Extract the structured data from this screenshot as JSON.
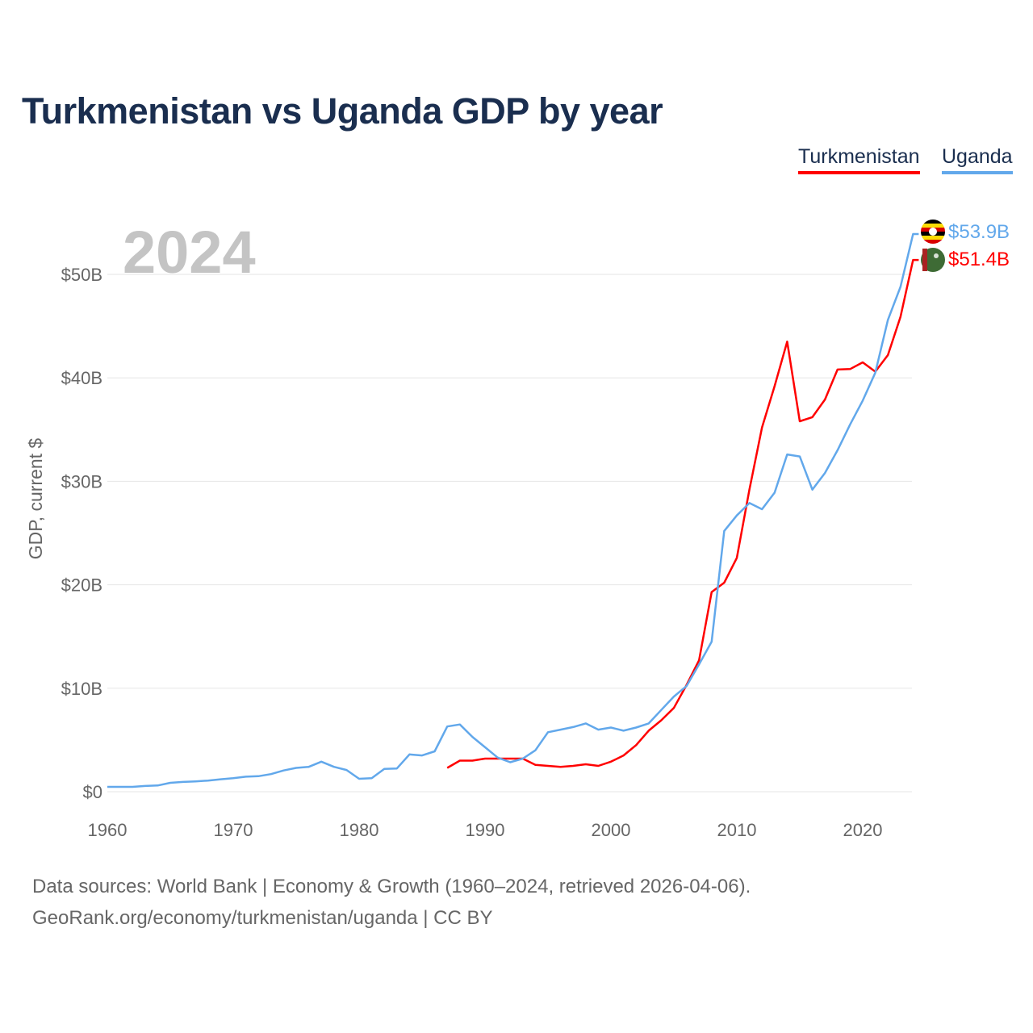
{
  "title": "Turkmenistan vs Uganda GDP by year",
  "legend": [
    "Turkmenistan",
    "Uganda"
  ],
  "year_label": "2024",
  "end_labels": {
    "uganda": "$53.9B",
    "turkmenistan": "$51.4B"
  },
  "flags": {
    "uganda": "uganda-flag-icon",
    "turkmenistan": "turkmenistan-flag-icon"
  },
  "sources": {
    "line1": "Data sources: World Bank | Economy & Growth (1960–2024, retrieved 2026-04-06).",
    "line2": "GeoRank.org/economy/turkmenistan/uganda | CC BY"
  },
  "chart_data": {
    "type": "line",
    "title": "Turkmenistan vs Uganda GDP by year",
    "xlabel": "",
    "ylabel": "GDP, current $",
    "xlim": [
      1960,
      2024
    ],
    "ylim": [
      0,
      55
    ],
    "x_ticks": [
      1960,
      1970,
      1980,
      1990,
      2000,
      2010,
      2020
    ],
    "x_tick_labels": [
      "1960",
      "1970",
      "1980",
      "1990",
      "2000",
      "2010",
      "2020"
    ],
    "y_ticks": [
      0,
      10,
      20,
      30,
      40,
      50
    ],
    "y_tick_labels": [
      "$0",
      "$10B",
      "$20B",
      "$30B",
      "$40B",
      "$50B"
    ],
    "grid": true,
    "legend_position": "top-right",
    "units": "billion USD",
    "series": [
      {
        "name": "Turkmenistan",
        "color": "#ff0000",
        "start_year": 1987,
        "values": [
          2.3,
          3.0,
          3.0,
          3.2,
          3.2,
          3.2,
          3.2,
          2.6,
          2.5,
          2.4,
          2.5,
          2.65,
          2.5,
          2.9,
          3.5,
          4.5,
          5.9,
          6.9,
          8.1,
          10.3,
          12.7,
          19.3,
          20.2,
          22.6,
          29.2,
          35.2,
          39.2,
          43.5,
          35.8,
          36.2,
          37.9,
          40.8,
          40.85,
          41.5,
          40.6,
          42.2,
          45.9,
          51.4
        ]
      },
      {
        "name": "Uganda",
        "color": "#62a8eb",
        "start_year": 1960,
        "values": [
          0.47,
          0.47,
          0.47,
          0.55,
          0.6,
          0.86,
          0.94,
          1.0,
          1.08,
          1.2,
          1.3,
          1.45,
          1.5,
          1.7,
          2.05,
          2.3,
          2.4,
          2.9,
          2.4,
          2.1,
          1.25,
          1.3,
          2.2,
          2.25,
          3.6,
          3.5,
          3.9,
          6.3,
          6.5,
          5.3,
          4.3,
          3.3,
          2.85,
          3.2,
          4.0,
          5.75,
          6.0,
          6.25,
          6.6,
          6.0,
          6.2,
          5.9,
          6.2,
          6.6,
          7.9,
          9.2,
          10.2,
          12.3,
          14.5,
          25.2,
          26.7,
          27.9,
          27.3,
          28.9,
          32.6,
          32.4,
          29.2,
          30.8,
          33.0,
          35.5,
          37.8,
          40.5,
          45.6,
          48.8,
          53.9
        ]
      }
    ]
  }
}
